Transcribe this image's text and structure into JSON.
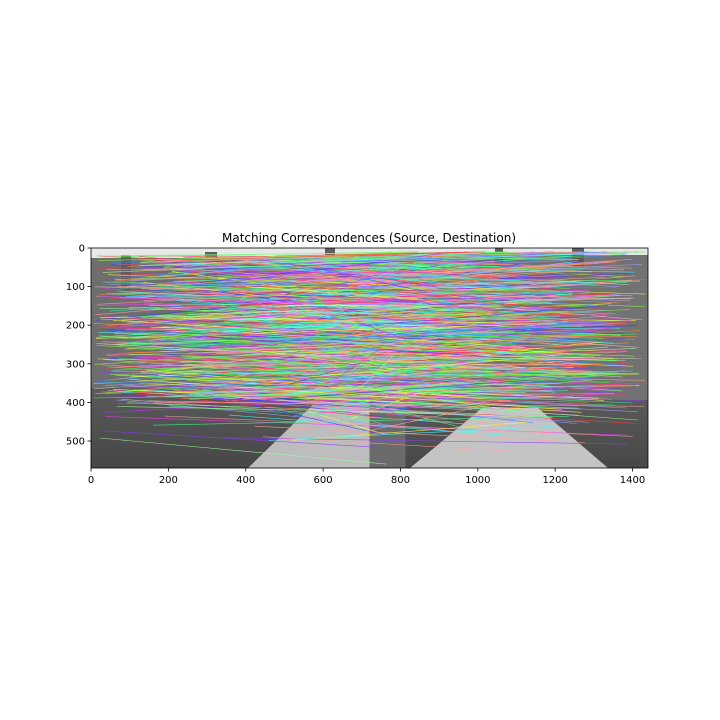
{
  "title": "Matching Correspondences (Source, Destination)",
  "axes": {
    "x_ticks": [
      0,
      200,
      400,
      600,
      800,
      1000,
      1200,
      1400
    ],
    "y_ticks": [
      0,
      100,
      200,
      300,
      400,
      500
    ],
    "xlim": [
      0,
      1440
    ],
    "ylim": [
      570,
      0
    ]
  },
  "image": {
    "description_hidden": true,
    "split_x": 720,
    "content": "two grayscale photos of a building side by side with colored match lines"
  },
  "lines": {
    "count": 900,
    "palette": [
      "#ff3b3b",
      "#3bff3b",
      "#3b3bff",
      "#ff3bff",
      "#3bffff",
      "#ffff3b",
      "#ff8c3b",
      "#8c3bff",
      "#3bff8c",
      "#ff3b8c",
      "#8cff3b",
      "#3b8cff",
      "#c8c8c8",
      "#ffa0a0",
      "#a0ffa0",
      "#a0a0ff"
    ]
  }
}
